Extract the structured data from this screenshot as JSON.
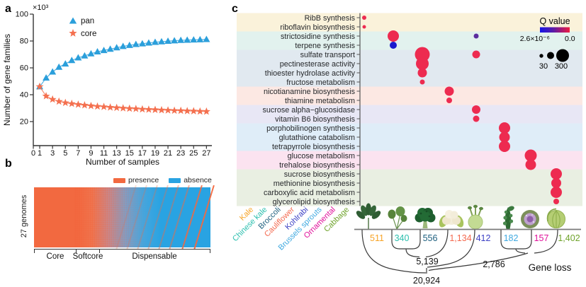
{
  "panels": {
    "a": "a",
    "b": "b",
    "c": "c"
  },
  "chart_data": [
    {
      "id": "a",
      "type": "scatter",
      "xlabel": "Number of samples",
      "ylabel": "Number of gene families",
      "y_unit": "×10³",
      "xlim": [
        0,
        27
      ],
      "ylim": [
        20,
        100
      ],
      "x_ticks": [
        0,
        1,
        3,
        5,
        7,
        9,
        11,
        13,
        15,
        17,
        19,
        21,
        23,
        25,
        27
      ],
      "y_ticks": [
        20,
        40,
        60,
        80,
        100
      ],
      "x": [
        1,
        2,
        3,
        4,
        5,
        6,
        7,
        8,
        9,
        10,
        11,
        12,
        13,
        14,
        15,
        16,
        17,
        18,
        19,
        20,
        21,
        22,
        23,
        24,
        25,
        26,
        27
      ],
      "series": [
        {
          "name": "pan",
          "marker": "triangle",
          "color": "#2B9FDB",
          "values": [
            46,
            52.5,
            57,
            60.5,
            63,
            65.5,
            67.5,
            69,
            70.5,
            72,
            73,
            74,
            75,
            76,
            76.8,
            77.5,
            78,
            78.6,
            79.1,
            79.5,
            79.9,
            80.2,
            80.5,
            80.7,
            80.9,
            81,
            81.2
          ],
          "errors": [
            0.4,
            1.8,
            1.6,
            1.4,
            1.2,
            1.1,
            1,
            0.9,
            0.8,
            0.7,
            0.6,
            0.5,
            0.5,
            0.4,
            0.4,
            0.4,
            0.3,
            0.3,
            0.3,
            0.3,
            0.3,
            0.3,
            0.2,
            0.2,
            0.2,
            0.2,
            0
          ]
        },
        {
          "name": "core",
          "marker": "star",
          "color": "#F4704F",
          "values": [
            46,
            39,
            36.5,
            35,
            34,
            33.3,
            32.7,
            32.2,
            31.7,
            31.3,
            31,
            30.6,
            30.3,
            30,
            29.7,
            29.5,
            29.2,
            29,
            28.8,
            28.6,
            28.4,
            28.2,
            28.1,
            27.9,
            27.8,
            27.6,
            27.5
          ],
          "errors": [
            0.4,
            1.5,
            1.3,
            1.1,
            1,
            0.9,
            0.8,
            0.7,
            0.6,
            0.5,
            0.5,
            0.4,
            0.4,
            0.4,
            0.3,
            0.3,
            0.3,
            0.3,
            0.3,
            0.2,
            0.2,
            0.2,
            0.2,
            0.2,
            0.2,
            0.2,
            0
          ]
        }
      ],
      "legend_position": "top-left",
      "grid": false
    },
    {
      "id": "b",
      "type": "heatmap",
      "ylabel": "27 genomes",
      "legend": [
        {
          "label": "presence",
          "color": "#F26940"
        },
        {
          "label": "absence",
          "color": "#29A3E2"
        }
      ],
      "x_sections": [
        {
          "label": "Core"
        },
        {
          "label": "Softcore"
        },
        {
          "label": "Dispensable"
        }
      ],
      "description": "Gene presence/absence matrix across 27 genomes, solid presence at left grading to absence with diagonal presence streaks at right"
    },
    {
      "id": "c",
      "type": "bubble-matrix",
      "terms": [
        "RibB synthesis",
        "riboflavin biosynthesis",
        "strictosidine synthesis",
        "terpene synthesis",
        "sulfate transport",
        "pectinesterase activity",
        "thioester  hydrolase activity",
        "fructose metabolism",
        "nicotianamine biosynthesis",
        "thiamine metabolism",
        "sucrose alpha−glucosidase",
        "vitamin B6 biosynthesis",
        "porphobilinogen synthesis",
        "glutathione catabolism",
        "tetrapyrrole biosynthesis",
        "glucose metabolism",
        "trehalose biosynthesis",
        "sucrose biosynthesis",
        "methionine biosynthesis",
        "carboxylic acid metabolism",
        "glycerolipid biosynthesis"
      ],
      "term_groups": [
        {
          "rows": [
            0,
            1
          ],
          "color": "#FAF2DA"
        },
        {
          "rows": [
            2,
            3
          ],
          "color": "#E2F2EE"
        },
        {
          "rows": [
            4,
            7
          ],
          "color": "#E1E9F0"
        },
        {
          "rows": [
            8,
            9
          ],
          "color": "#FCE8E3"
        },
        {
          "rows": [
            10,
            11
          ],
          "color": "#E8E7F5"
        },
        {
          "rows": [
            12,
            14
          ],
          "color": "#DFEDF8"
        },
        {
          "rows": [
            15,
            16
          ],
          "color": "#FBE3F0"
        },
        {
          "rows": [
            17,
            20
          ],
          "color": "#E9EFE2"
        }
      ],
      "crops": [
        {
          "name": "Kale",
          "color": "#F7A426",
          "gene_loss": "511"
        },
        {
          "name": "Chinese kale",
          "color": "#2BBFAE",
          "gene_loss": "340"
        },
        {
          "name": "Broccoli",
          "color": "#1D5F7E",
          "gene_loss": "556"
        },
        {
          "name": "Cauliflower",
          "color": "#F4694F",
          "gene_loss": "1,134"
        },
        {
          "name": "Kohlrabi",
          "color": "#3B3FC4",
          "gene_loss": "412"
        },
        {
          "name": "Brussels sprouts",
          "color": "#3FA9E0",
          "gene_loss": "182"
        },
        {
          "name": "Ornamental",
          "color": "#E0119B",
          "gene_loss": "157"
        },
        {
          "name": "Cabbage",
          "color": "#6FA32B",
          "gene_loss": "1,402"
        }
      ],
      "dots": [
        {
          "term": 0,
          "crop": 0,
          "r": 3,
          "color": "#ED2B50"
        },
        {
          "term": 1,
          "crop": 0,
          "r": 2.5,
          "color": "#ED2B50"
        },
        {
          "term": 2,
          "crop": 1,
          "r": 8,
          "color": "#ED2B50"
        },
        {
          "term": 2,
          "crop": 4,
          "r": 3.5,
          "color": "#5B2D9E"
        },
        {
          "term": 3,
          "crop": 1,
          "r": 5,
          "color": "#1A1ACC"
        },
        {
          "term": 4,
          "crop": 2,
          "r": 10.5,
          "color": "#ED2B50"
        },
        {
          "term": 4,
          "crop": 4,
          "r": 5.5,
          "color": "#ED2B50"
        },
        {
          "term": 5,
          "crop": 2,
          "r": 9,
          "color": "#ED2B50"
        },
        {
          "term": 6,
          "crop": 2,
          "r": 6.5,
          "color": "#ED2B50"
        },
        {
          "term": 7,
          "crop": 2,
          "r": 3.5,
          "color": "#ED2B50"
        },
        {
          "term": 8,
          "crop": 3,
          "r": 6.5,
          "color": "#ED2B50"
        },
        {
          "term": 9,
          "crop": 3,
          "r": 4,
          "color": "#ED2B50"
        },
        {
          "term": 10,
          "crop": 4,
          "r": 6,
          "color": "#ED2B50"
        },
        {
          "term": 11,
          "crop": 4,
          "r": 4.5,
          "color": "#ED2B50"
        },
        {
          "term": 12,
          "crop": 5,
          "r": 8,
          "color": "#ED2B50"
        },
        {
          "term": 13,
          "crop": 5,
          "r": 7.5,
          "color": "#ED2B50"
        },
        {
          "term": 14,
          "crop": 5,
          "r": 8,
          "color": "#ED2B50"
        },
        {
          "term": 15,
          "crop": 6,
          "r": 8.5,
          "color": "#ED2B50"
        },
        {
          "term": 16,
          "crop": 6,
          "r": 7.5,
          "color": "#ED2B50"
        },
        {
          "term": 17,
          "crop": 7,
          "r": 8,
          "color": "#ED2B50"
        },
        {
          "term": 18,
          "crop": 7,
          "r": 7,
          "color": "#ED2B50"
        },
        {
          "term": 19,
          "crop": 7,
          "r": 8,
          "color": "#ED2B50"
        },
        {
          "term": 20,
          "crop": 7,
          "r": 4,
          "color": "#ED2B50"
        }
      ],
      "q_legend": {
        "title": "Q value",
        "min_label": "2.6×10⁻⁶",
        "max_label": "0.0",
        "gradient": [
          "#1414E8",
          "#5A1CA8",
          "#A01878",
          "#ED1C40"
        ]
      },
      "size_legend": {
        "labels": [
          "30",
          "300"
        ]
      },
      "tree": {
        "node_labels": [
          "5,139",
          "2,786",
          "20,924"
        ],
        "caption": "Gene loss"
      }
    }
  ]
}
